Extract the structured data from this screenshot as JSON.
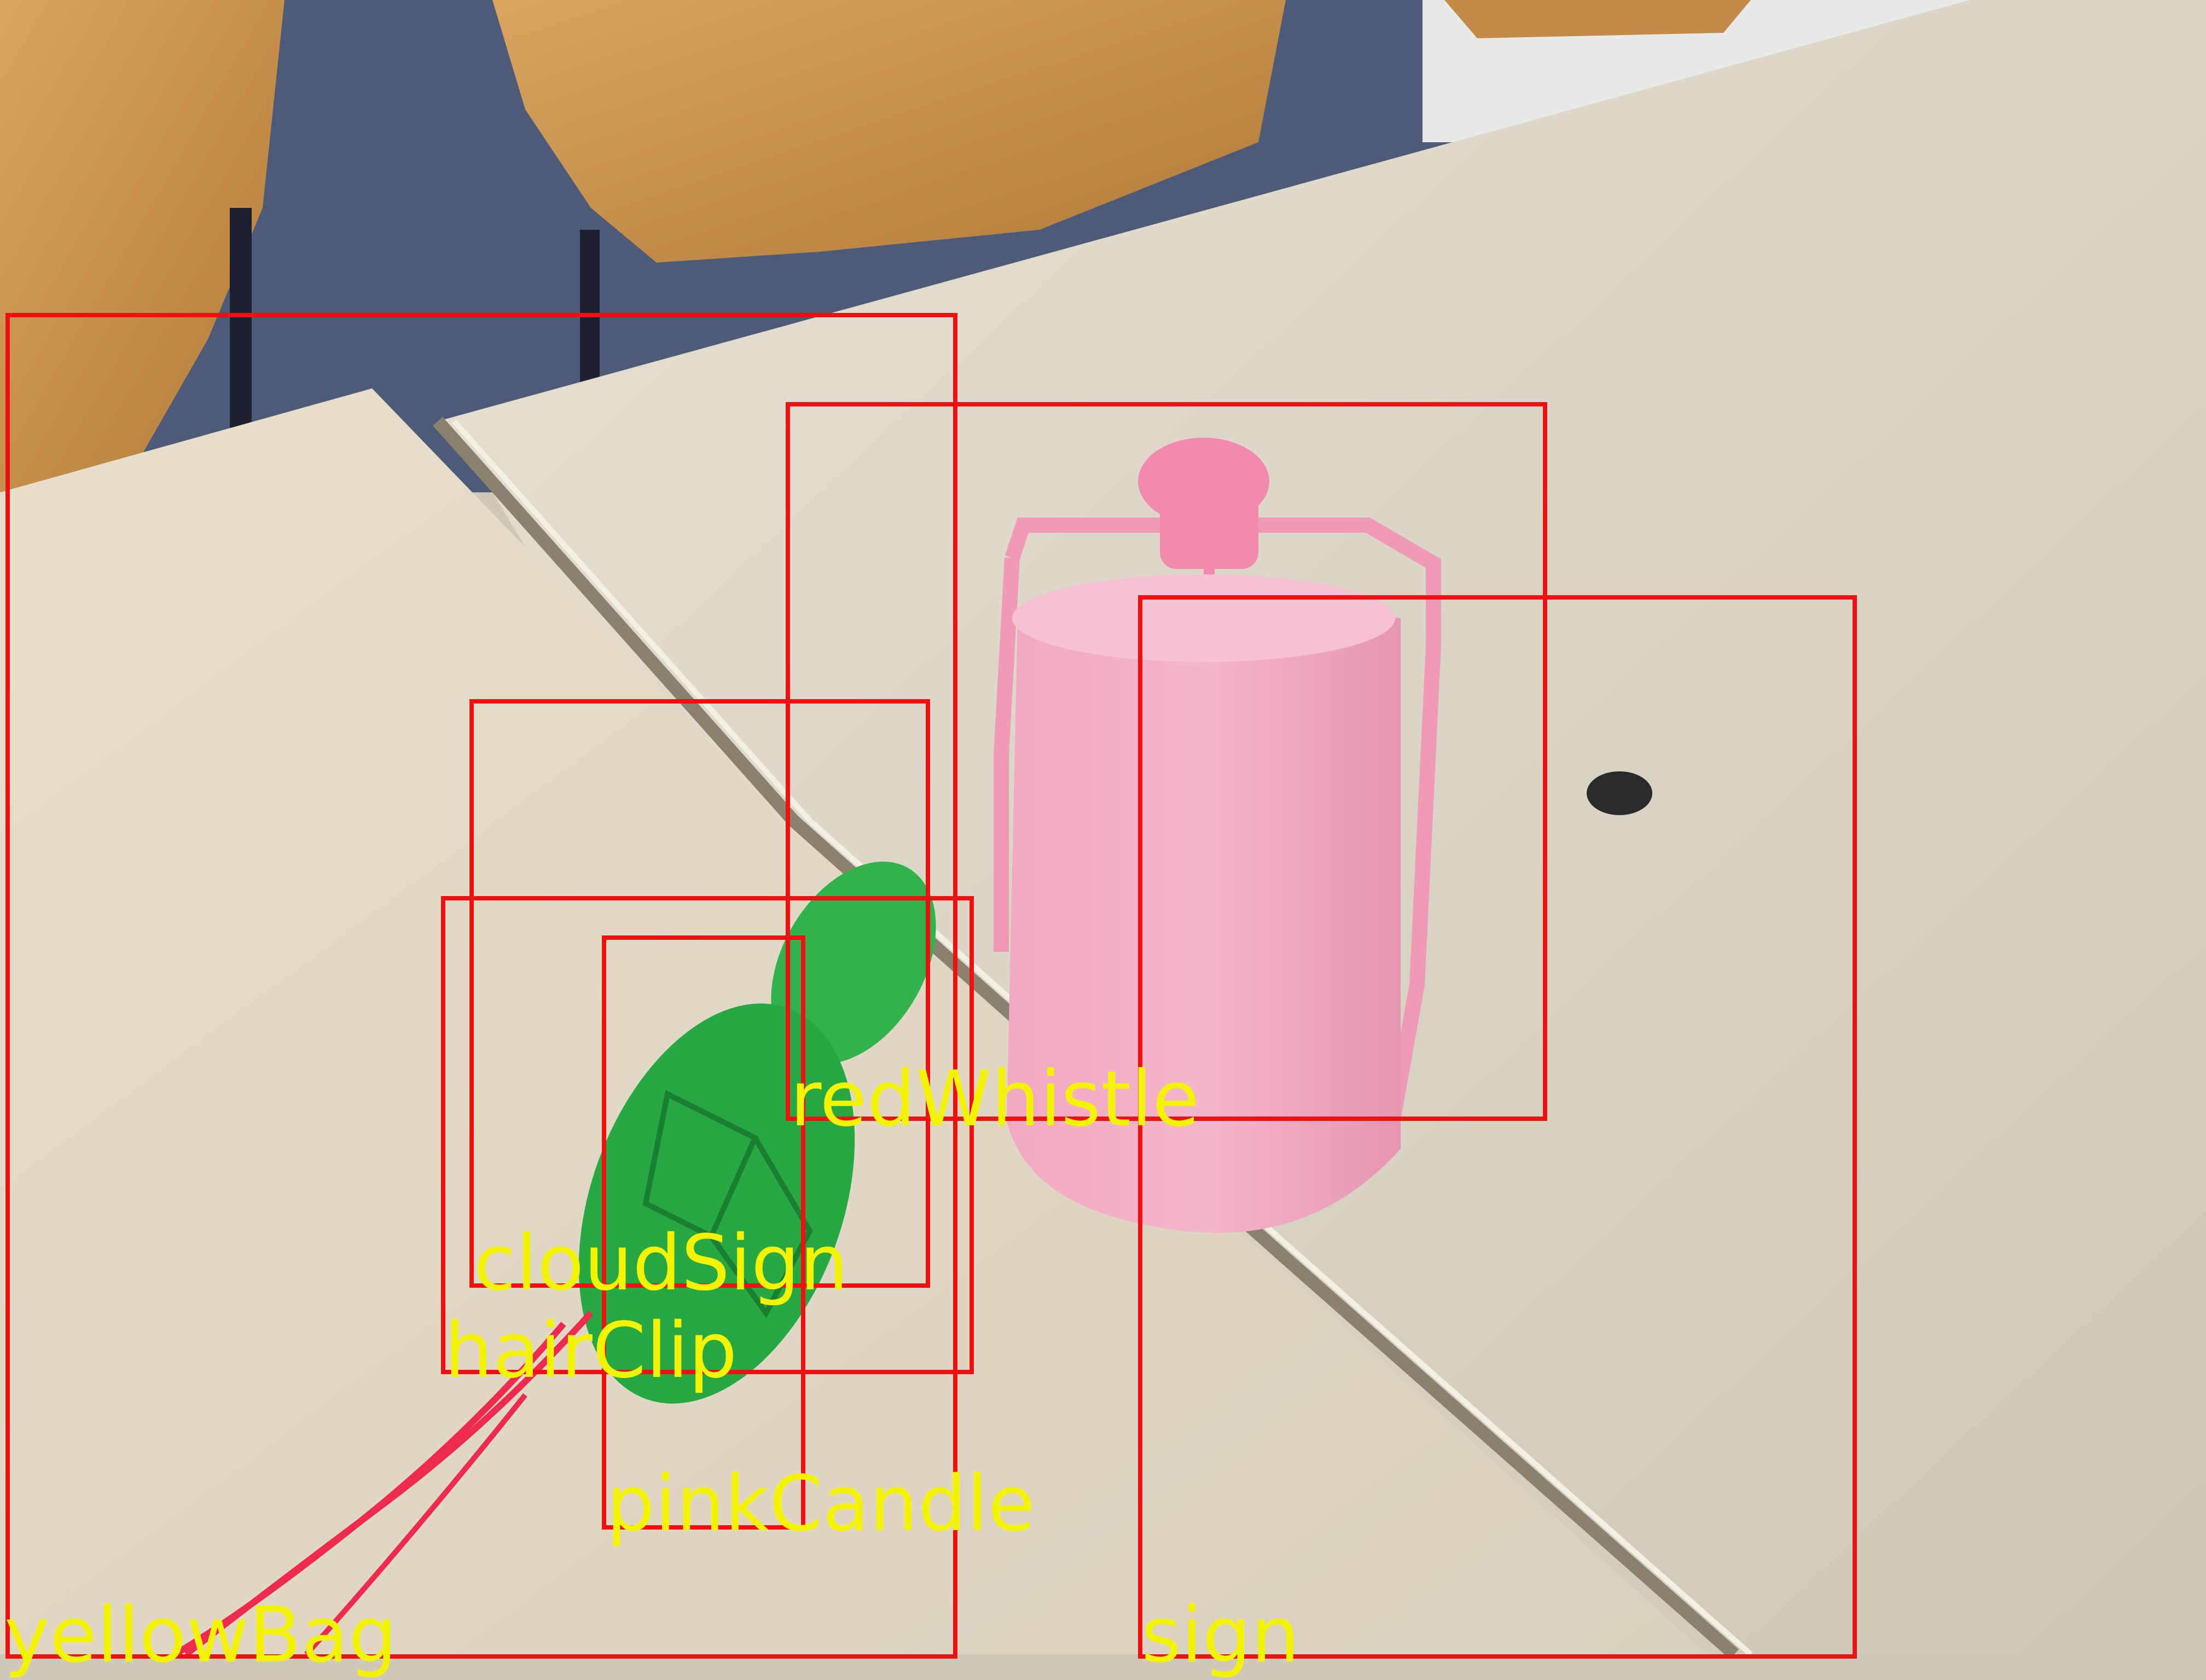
{
  "colors": {
    "box_stroke": "#ee1111",
    "label_text": "#f4f400",
    "background": "#cfc8bb"
  },
  "detections": [
    {
      "id": "yellowBag",
      "label": "yellowBag"
    },
    {
      "id": "redWhistle",
      "label": "redWhistle"
    },
    {
      "id": "sign",
      "label": "sign"
    },
    {
      "id": "cloudSign",
      "label": "cloudSign"
    },
    {
      "id": "hairClip",
      "label": "hairClip"
    },
    {
      "id": "pinkCandle",
      "label": "pinkCandle"
    }
  ]
}
